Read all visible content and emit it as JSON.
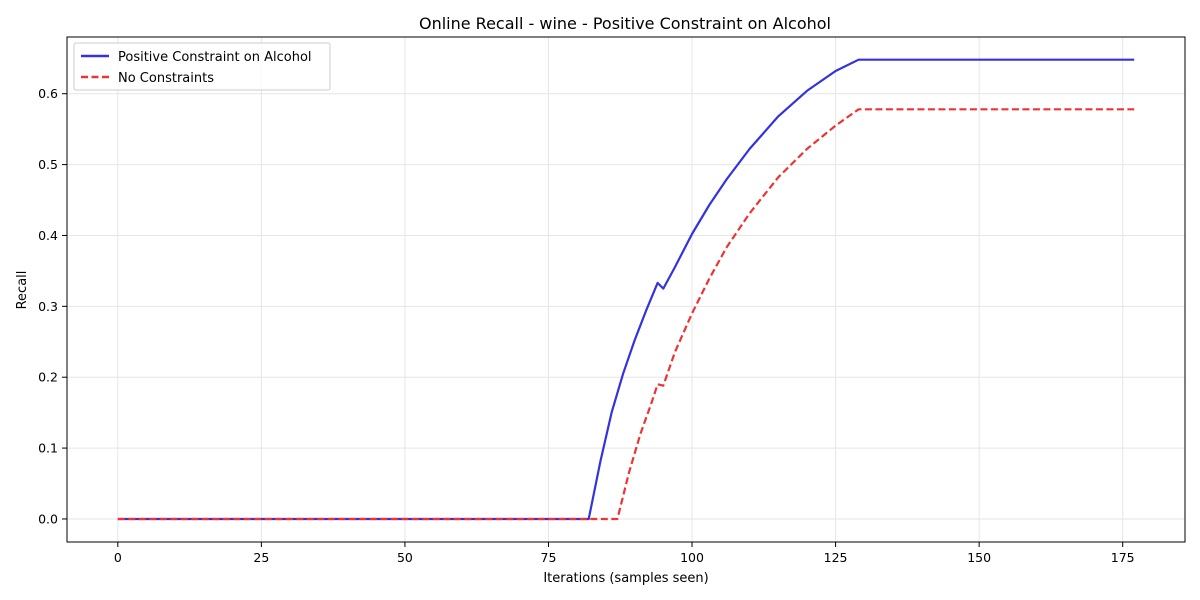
{
  "chart_data": {
    "type": "line",
    "title": "Online Recall - wine - Positive Constraint on Alcohol",
    "xlabel": "Iterations (samples seen)",
    "ylabel": "Recall",
    "xlim": [
      -8.85,
      185.85
    ],
    "ylim": [
      -0.0325,
      0.68
    ],
    "xticks": [
      0,
      25,
      50,
      75,
      100,
      125,
      150,
      175
    ],
    "yticks": [
      0.0,
      0.1,
      0.2,
      0.3,
      0.4,
      0.5,
      0.6
    ],
    "grid": true,
    "legend_position": "top-left",
    "series": [
      {
        "name": "Positive Constraint on Alcohol",
        "color": "#3333dd",
        "style": "solid",
        "x": [
          0,
          82,
          84,
          86,
          88,
          90,
          92,
          94,
          95,
          97,
          100,
          103,
          106,
          110,
          115,
          120,
          125,
          129,
          177
        ],
        "y": [
          0,
          0,
          0.08,
          0.15,
          0.205,
          0.252,
          0.294,
          0.333,
          0.325,
          0.355,
          0.402,
          0.443,
          0.479,
          0.522,
          0.568,
          0.604,
          0.632,
          0.648,
          0.648
        ]
      },
      {
        "name": "No Constraints",
        "color": "#ee3333",
        "style": "dashed",
        "x": [
          0,
          87,
          89,
          91,
          93,
          94,
          95,
          97,
          100,
          103,
          106,
          110,
          115,
          120,
          125,
          129,
          177
        ],
        "y": [
          0,
          0,
          0.065,
          0.12,
          0.165,
          0.19,
          0.188,
          0.235,
          0.29,
          0.339,
          0.383,
          0.431,
          0.482,
          0.522,
          0.555,
          0.578,
          0.578
        ]
      }
    ]
  }
}
